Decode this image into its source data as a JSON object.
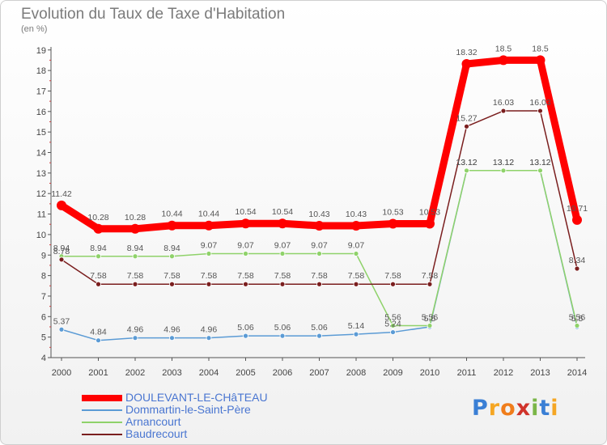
{
  "chart_data": {
    "type": "line",
    "title": "Evolution du Taux de Taxe d'Habitation",
    "ylabel": "(en %)",
    "xlabel": "",
    "ylim": [
      4,
      19
    ],
    "yticks": [
      4,
      5,
      6,
      7,
      8,
      9,
      10,
      11,
      12,
      13,
      14,
      15,
      16,
      17,
      18,
      19
    ],
    "categories": [
      "2000",
      "2001",
      "2002",
      "2003",
      "2004",
      "2005",
      "2006",
      "2007",
      "2008",
      "2009",
      "2010",
      "2011",
      "2012",
      "2013",
      "2014"
    ],
    "grid": false,
    "legend_position": "bottom-left",
    "series": [
      {
        "name": "DOULEVANT-LE-CHâTEAU",
        "color": "#ff0000",
        "values": [
          11.42,
          10.28,
          10.28,
          10.44,
          10.44,
          10.54,
          10.54,
          10.43,
          10.43,
          10.53,
          10.53,
          18.32,
          18.5,
          18.5,
          10.71
        ],
        "labels": [
          "11.42",
          "10.28",
          "10.28",
          "10.44",
          "10.44",
          "10.54",
          "10.54",
          "10.43",
          "10.43",
          "10.53",
          "10.53",
          "18.32",
          "18.5",
          "18.5",
          "10.71"
        ]
      },
      {
        "name": "Dommartin-le-Saint-Père",
        "color": "#5b9bd5",
        "values": [
          5.37,
          4.84,
          4.96,
          4.96,
          4.96,
          5.06,
          5.06,
          5.06,
          5.14,
          5.24,
          5.5,
          13.12,
          13.12,
          13.12,
          5.5
        ],
        "labels": [
          "5.37",
          "4.84",
          "4.96",
          "4.96",
          "4.96",
          "5.06",
          "5.06",
          "5.06",
          "5.14",
          "5.24",
          "5.5",
          "13.12",
          "13.12",
          "13.12",
          "5.5"
        ]
      },
      {
        "name": "Arnancourt",
        "color": "#8fd26a",
        "values": [
          8.94,
          8.94,
          8.94,
          8.94,
          9.07,
          9.07,
          9.07,
          9.07,
          9.07,
          5.56,
          5.56,
          13.12,
          13.12,
          13.12,
          5.56
        ],
        "labels": [
          "8.94",
          "8.94",
          "8.94",
          "8.94",
          "9.07",
          "9.07",
          "9.07",
          "9.07",
          "9.07",
          "5.56",
          "5.56",
          "13.12",
          "13.12",
          "13.12",
          "5.56"
        ]
      },
      {
        "name": "Baudrecourt",
        "color": "#7a1e1e",
        "values": [
          8.78,
          7.58,
          7.58,
          7.58,
          7.58,
          7.58,
          7.58,
          7.58,
          7.58,
          7.58,
          7.58,
          15.27,
          16.03,
          16.03,
          8.34
        ],
        "labels": [
          "8.78",
          "7.58",
          "7.58",
          "7.58",
          "7.58",
          "7.58",
          "7.58",
          "7.58",
          "7.58",
          "7.58",
          "7.58",
          "15.27",
          "16.03",
          "16.03",
          "8.34"
        ]
      }
    ]
  },
  "brand": {
    "text": "Proxiti",
    "letters": [
      {
        "ch": "P",
        "color": "#3a7fd5"
      },
      {
        "ch": "r",
        "color": "#f5a623"
      },
      {
        "ch": "o",
        "color": "#f07d1b"
      },
      {
        "ch": "x",
        "color": "#d0332a"
      },
      {
        "ch": "i",
        "color": "#7ab648"
      },
      {
        "ch": "t",
        "color": "#3a7fd5"
      },
      {
        "ch": "i",
        "color": "#f5a623"
      }
    ]
  }
}
